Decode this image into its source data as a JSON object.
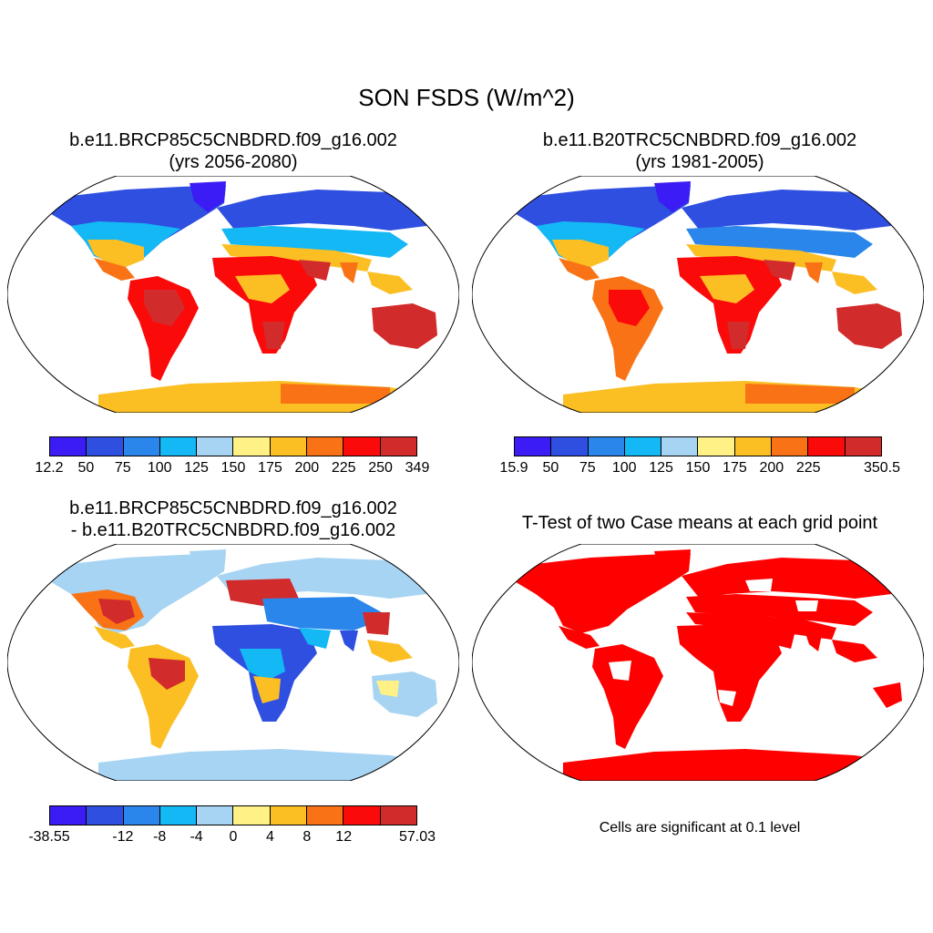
{
  "title": "SON FSDS (W/m^2)",
  "panels": [
    {
      "title_line1": "b.e11.BRCP85C5CNBDRD.f09_g16.002",
      "title_line2": "(yrs 2056-2080)"
    },
    {
      "title_line1": "b.e11.B20TRC5CNBDRD.f09_g16.002",
      "title_line2": "(yrs 1981-2005)"
    },
    {
      "title_line1": "b.e11.BRCP85C5CNBDRD.f09_g16.002",
      "title_line2": "- b.e11.B20TRC5CNBDRD.f09_g16.002"
    },
    {
      "title_line1": "T-Test of two Case means at each grid point",
      "title_line2": ""
    }
  ],
  "colorbars": {
    "colors": [
      "#3b1cf5",
      "#2f4fe0",
      "#2a86ea",
      "#14b8f5",
      "#a6d4f2",
      "#fff185",
      "#fbbf24",
      "#f97316",
      "#fb0a0a",
      "#d22b2b"
    ],
    "case1": [
      "12.2",
      "50",
      "75",
      "100",
      "125",
      "150",
      "175",
      "200",
      "225",
      "250",
      "349"
    ],
    "case2": [
      "15.9",
      "50",
      "75",
      "100",
      "125",
      "150",
      "175",
      "200",
      "225",
      "",
      "350.5"
    ],
    "diff": [
      "-38.55",
      "",
      "-12",
      "-8",
      "-4",
      "0",
      "4",
      "8",
      "12",
      "",
      "57.03"
    ]
  },
  "significance_color": "#ff0000",
  "note": "Cells are significant at 0.1 level"
}
